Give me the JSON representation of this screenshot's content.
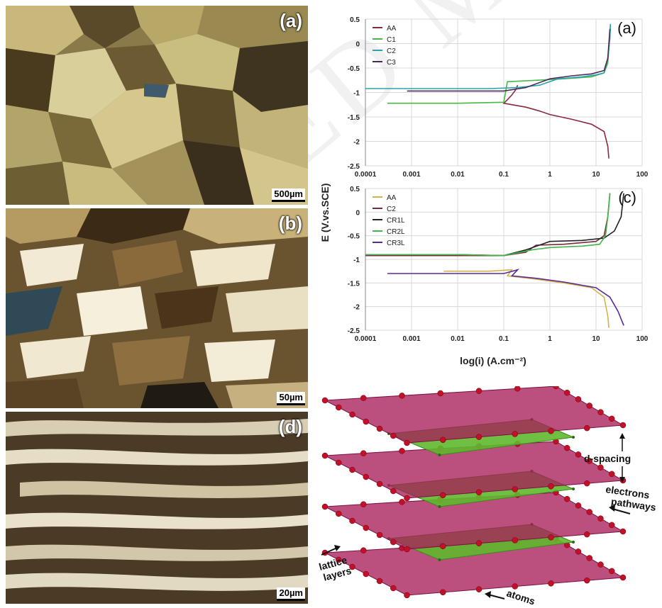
{
  "micrographs": [
    {
      "label": "(a)",
      "scale": "500µm"
    },
    {
      "label": "(b)",
      "scale": "50µm"
    },
    {
      "label": "(d)",
      "scale": "20µm"
    }
  ],
  "colors": {
    "AA": "#8b2a3c",
    "C1": "#49b84a",
    "C2": "#2aa3b0",
    "C3": "#4a2a5a",
    "AA_c": "#d6b24a",
    "C2_c": "#7a2a3a",
    "CR1L": "#222222",
    "CR2L": "#3fb54a",
    "CR3L": "#5a2a9a",
    "lattice": "#a81e5a",
    "green_plane": "#5fb82e",
    "atom": "#c0102a"
  },
  "yaxis_title": "E (V.vs.SCE)",
  "xaxis_title": "log(i) (A.cm⁻²)",
  "chart_data": [
    {
      "type": "line",
      "panel_label": "(a)",
      "x_ticks": [
        "0.0001",
        "0.001",
        "0.01",
        "0.1",
        "1",
        "10",
        "100"
      ],
      "y_ticks": [
        "0.5",
        "0",
        "-0.5",
        "-1",
        "-1.5",
        "-2",
        "-2.5"
      ],
      "xlim": [
        0.0001,
        100
      ],
      "ylim": [
        -2.5,
        0.5
      ],
      "xscale": "log",
      "legend": "top-left",
      "series": [
        {
          "name": "AA",
          "x": [
            0.2,
            0.18,
            0.15,
            0.12,
            0.1,
            0.3,
            0.6,
            1,
            3,
            8,
            15,
            18,
            19
          ],
          "y": [
            -0.85,
            -0.95,
            -1.05,
            -1.15,
            -1.22,
            -1.3,
            -1.38,
            -1.45,
            -1.55,
            -1.65,
            -1.8,
            -2.1,
            -2.35
          ]
        },
        {
          "name": "C1",
          "x": [
            0.0003,
            0.01,
            0.1,
            0.12,
            0.5,
            2,
            8,
            15,
            18,
            19,
            20,
            20.5
          ],
          "y": [
            -1.22,
            -1.22,
            -1.2,
            -0.78,
            -0.75,
            -0.72,
            -0.68,
            -0.6,
            -0.4,
            -0.1,
            0.2,
            0.4
          ]
        },
        {
          "name": "C2",
          "x": [
            0.0001,
            0.005,
            0.05,
            0.2,
            0.6,
            1.5,
            5,
            10,
            15,
            18,
            20,
            20.5
          ],
          "y": [
            -0.92,
            -0.92,
            -0.92,
            -0.9,
            -0.85,
            -0.72,
            -0.68,
            -0.64,
            -0.6,
            -0.3,
            0.1,
            0.4
          ]
        },
        {
          "name": "C3",
          "x": [
            0.0008,
            0.01,
            0.1,
            0.3,
            1,
            3,
            8,
            15,
            18,
            20
          ],
          "y": [
            -0.97,
            -0.97,
            -0.97,
            -0.9,
            -0.72,
            -0.66,
            -0.62,
            -0.55,
            -0.3,
            0.3
          ]
        }
      ]
    },
    {
      "type": "line",
      "panel_label": "(c)",
      "x_ticks": [
        "0.0001",
        "0.001",
        "0.01",
        "0.1",
        "1",
        "10",
        "100"
      ],
      "y_ticks": [
        "0.5",
        "0",
        "-0.5",
        "-1",
        "-1.5",
        "-2",
        "-2.5"
      ],
      "xlim": [
        0.0001,
        100
      ],
      "ylim": [
        -2.5,
        0.5
      ],
      "xscale": "log",
      "legend": "top-left",
      "series": [
        {
          "name": "AA",
          "x": [
            0.005,
            0.05,
            0.15,
            0.12,
            0.5,
            2,
            8,
            15,
            18,
            19
          ],
          "y": [
            -1.25,
            -1.25,
            -1.22,
            -1.35,
            -1.42,
            -1.5,
            -1.6,
            -1.8,
            -2.2,
            -2.45
          ]
        },
        {
          "name": "C2",
          "x": [
            0.0001,
            0.01,
            0.1,
            0.3,
            0.5,
            2,
            10,
            15,
            18,
            20
          ],
          "y": [
            -0.92,
            -0.92,
            -0.92,
            -0.85,
            -0.7,
            -0.68,
            -0.62,
            -0.5,
            -0.1,
            0.4
          ]
        },
        {
          "name": "CR1L",
          "x": [
            0.0005,
            0.01,
            0.1,
            0.3,
            1,
            5,
            15,
            25,
            35,
            40
          ],
          "y": [
            -0.9,
            -0.9,
            -0.92,
            -0.8,
            -0.62,
            -0.6,
            -0.55,
            -0.4,
            -0.1,
            0.4
          ]
        },
        {
          "name": "CR2L",
          "x": [
            0.0001,
            0.01,
            0.1,
            0.4,
            1,
            5,
            12,
            16,
            18,
            20
          ],
          "y": [
            -0.9,
            -0.9,
            -0.92,
            -0.8,
            -0.75,
            -0.72,
            -0.68,
            -0.5,
            -0.1,
            0.4
          ]
        },
        {
          "name": "CR3L",
          "x": [
            0.0003,
            0.01,
            0.1,
            0.2,
            0.15,
            0.5,
            2,
            10,
            20,
            30,
            40
          ],
          "y": [
            -1.3,
            -1.3,
            -1.3,
            -1.22,
            -1.35,
            -1.4,
            -1.48,
            -1.6,
            -1.8,
            -2.1,
            -2.4
          ]
        }
      ]
    }
  ],
  "diagram": {
    "labels": [
      "d-spacing",
      "electrons pathways",
      "lattice layers",
      "atoms"
    ]
  }
}
